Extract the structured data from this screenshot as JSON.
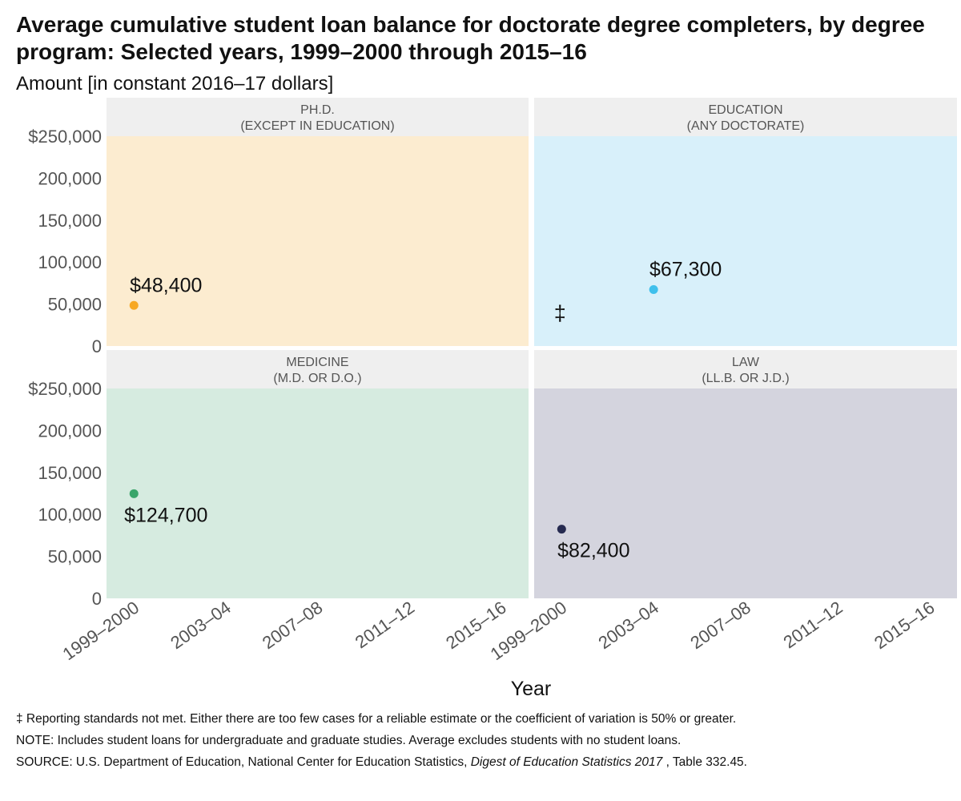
{
  "title": "Average cumulative student loan balance for doctorate degree completers, by degree program: Selected years, 1999–2000 through 2015–16",
  "subtitle": "Amount [in constant 2016–17 dollars]",
  "footnotes": {
    "reporting_standards": "‡ Reporting standards not met. Either there are too few cases for a reliable estimate or the coefficient of variation is 50% or greater.",
    "note": "NOTE: Includes student loans for undergraduate and graduate studies. Average excludes students with no student loans.",
    "source_prefix": "SOURCE: U.S. Department of Education, National Center for Education Statistics, ",
    "source_title": "Digest of Education Statistics 2017",
    "source_suffix": ", Table 332.45."
  },
  "chart_data": {
    "type": "scatter",
    "xlabel": "Year",
    "x_categories": [
      "1999–2000",
      "2003–04",
      "2007–08",
      "2011–12",
      "2015–16"
    ],
    "ylim": [
      0,
      250000
    ],
    "y_ticks": [
      0,
      50000,
      100000,
      150000,
      200000,
      250000
    ],
    "y_tick_labels": [
      "0",
      "50,000",
      "100,000",
      "150,000",
      "200,000",
      "$250,000"
    ],
    "grid": false,
    "panels": [
      {
        "strip": [
          "PH.D.",
          "(EXCEPT IN EDUCATION)"
        ],
        "background": "#fcecd0",
        "color": "#f7a823",
        "points": [
          {
            "x": "1999–2000",
            "y": 48400,
            "label": "$48,400"
          }
        ],
        "suppressed": []
      },
      {
        "strip": [
          "EDUCATION",
          "(ANY DOCTORATE)"
        ],
        "background": "#d8f0fa",
        "color": "#3fc0ec",
        "points": [
          {
            "x": "2003–04",
            "y": 67300,
            "label": "$67,300"
          }
        ],
        "suppressed": [
          {
            "x": "1999–2000",
            "label": "‡"
          }
        ]
      },
      {
        "strip": [
          "MEDICINE",
          "(M.D. OR D.O.)"
        ],
        "background": "#d6ebe0",
        "color": "#3aa56a",
        "points": [
          {
            "x": "1999–2000",
            "y": 124700,
            "label": "$124,700"
          }
        ],
        "suppressed": []
      },
      {
        "strip": [
          "LAW",
          "(LL.B. OR J.D.)"
        ],
        "background": "#d4d4de",
        "color": "#262a50",
        "points": [
          {
            "x": "1999–2000",
            "y": 82400,
            "label": "$82,400"
          }
        ],
        "suppressed": []
      }
    ]
  }
}
